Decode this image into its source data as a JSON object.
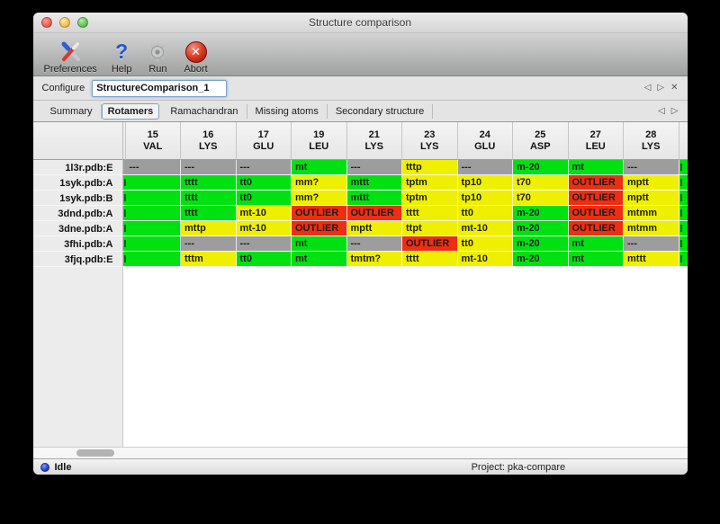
{
  "window": {
    "title": "Structure comparison"
  },
  "colors": {
    "green": "#00e112",
    "yellow": "#efef00",
    "red": "#ee2e12",
    "gray": "#9d9d9d"
  },
  "toolbar": {
    "buttons": [
      {
        "label": "Preferences",
        "icon": "tools-icon"
      },
      {
        "label": "Help",
        "icon": "help-icon"
      },
      {
        "label": "Run",
        "icon": "gear-icon"
      },
      {
        "label": "Abort",
        "icon": "abort-icon"
      }
    ]
  },
  "configure": {
    "label": "Configure",
    "value": "StructureComparison_1",
    "nav": {
      "prev": "◁",
      "next": "▷",
      "close": "✕"
    }
  },
  "tabs": {
    "items": [
      "Summary",
      "Rotamers",
      "Ramachandran",
      "Missing atoms",
      "Secondary structure"
    ],
    "active": "Rotamers",
    "nav": {
      "prev": "◁",
      "next": "▷"
    }
  },
  "table": {
    "columns": [
      {
        "num": "15",
        "res": "VAL"
      },
      {
        "num": "16",
        "res": "LYS"
      },
      {
        "num": "17",
        "res": "GLU"
      },
      {
        "num": "19",
        "res": "LEU"
      },
      {
        "num": "21",
        "res": "LYS"
      },
      {
        "num": "23",
        "res": "LYS"
      },
      {
        "num": "24",
        "res": "GLU"
      },
      {
        "num": "25",
        "res": "ASP"
      },
      {
        "num": "27",
        "res": "LEU"
      },
      {
        "num": "28",
        "res": "LYS"
      }
    ],
    "rows": [
      {
        "label": "1l3r.pdb:E",
        "edge_left": "gray",
        "edge_right": "green",
        "cells": [
          {
            "text": "---",
            "color": "gray"
          },
          {
            "text": "---",
            "color": "gray"
          },
          {
            "text": "---",
            "color": "gray"
          },
          {
            "text": "mt",
            "color": "green"
          },
          {
            "text": "---",
            "color": "gray"
          },
          {
            "text": "tttp",
            "color": "yellow"
          },
          {
            "text": "---",
            "color": "gray"
          },
          {
            "text": "m-20",
            "color": "green"
          },
          {
            "text": "mt",
            "color": "green"
          },
          {
            "text": "---",
            "color": "gray"
          }
        ]
      },
      {
        "label": "1syk.pdb:A",
        "edge_left": "green",
        "edge_right": "green",
        "cells": [
          {
            "text": "",
            "color": "green"
          },
          {
            "text": "tttt",
            "color": "green"
          },
          {
            "text": "tt0",
            "color": "green"
          },
          {
            "text": "mm?",
            "color": "yellow"
          },
          {
            "text": "mttt",
            "color": "green"
          },
          {
            "text": "tptm",
            "color": "yellow"
          },
          {
            "text": "tp10",
            "color": "yellow"
          },
          {
            "text": "t70",
            "color": "yellow"
          },
          {
            "text": "OUTLIER",
            "color": "red"
          },
          {
            "text": "mptt",
            "color": "yellow"
          }
        ]
      },
      {
        "label": "1syk.pdb:B",
        "edge_left": "green",
        "edge_right": "green",
        "cells": [
          {
            "text": "",
            "color": "green"
          },
          {
            "text": "tttt",
            "color": "green"
          },
          {
            "text": "tt0",
            "color": "green"
          },
          {
            "text": "mm?",
            "color": "yellow"
          },
          {
            "text": "mttt",
            "color": "green"
          },
          {
            "text": "tptm",
            "color": "yellow"
          },
          {
            "text": "tp10",
            "color": "yellow"
          },
          {
            "text": "t70",
            "color": "yellow"
          },
          {
            "text": "OUTLIER",
            "color": "red"
          },
          {
            "text": "mptt",
            "color": "yellow"
          }
        ]
      },
      {
        "label": "3dnd.pdb:A",
        "edge_left": "green",
        "edge_right": "green",
        "cells": [
          {
            "text": "",
            "color": "green"
          },
          {
            "text": "tttt",
            "color": "green"
          },
          {
            "text": "mt-10",
            "color": "yellow"
          },
          {
            "text": "OUTLIER",
            "color": "red"
          },
          {
            "text": "OUTLIER",
            "color": "red"
          },
          {
            "text": "tttt",
            "color": "yellow"
          },
          {
            "text": "tt0",
            "color": "yellow"
          },
          {
            "text": "m-20",
            "color": "green"
          },
          {
            "text": "OUTLIER",
            "color": "red"
          },
          {
            "text": "mtmm",
            "color": "yellow"
          }
        ]
      },
      {
        "label": "3dne.pdb:A",
        "edge_left": "green",
        "edge_right": "green",
        "cells": [
          {
            "text": "",
            "color": "green"
          },
          {
            "text": "mttp",
            "color": "yellow"
          },
          {
            "text": "mt-10",
            "color": "yellow"
          },
          {
            "text": "OUTLIER",
            "color": "red"
          },
          {
            "text": "mptt",
            "color": "yellow"
          },
          {
            "text": "ttpt",
            "color": "yellow"
          },
          {
            "text": "mt-10",
            "color": "yellow"
          },
          {
            "text": "m-20",
            "color": "green"
          },
          {
            "text": "OUTLIER",
            "color": "red"
          },
          {
            "text": "mtmm",
            "color": "yellow"
          }
        ]
      },
      {
        "label": "3fhi.pdb:A",
        "edge_left": "green",
        "edge_right": "green",
        "cells": [
          {
            "text": "",
            "color": "green"
          },
          {
            "text": "---",
            "color": "gray"
          },
          {
            "text": "---",
            "color": "gray"
          },
          {
            "text": "mt",
            "color": "green"
          },
          {
            "text": "---",
            "color": "gray"
          },
          {
            "text": "OUTLIER",
            "color": "red"
          },
          {
            "text": "tt0",
            "color": "yellow"
          },
          {
            "text": "m-20",
            "color": "green"
          },
          {
            "text": "mt",
            "color": "green"
          },
          {
            "text": "---",
            "color": "gray"
          }
        ]
      },
      {
        "label": "3fjq.pdb:E",
        "edge_left": "green",
        "edge_right": "green",
        "cells": [
          {
            "text": "",
            "color": "green"
          },
          {
            "text": "tttm",
            "color": "yellow"
          },
          {
            "text": "tt0",
            "color": "green"
          },
          {
            "text": "mt",
            "color": "green"
          },
          {
            "text": "tmtm?",
            "color": "yellow"
          },
          {
            "text": "tttt",
            "color": "yellow"
          },
          {
            "text": "mt-10",
            "color": "yellow"
          },
          {
            "text": "m-20",
            "color": "green"
          },
          {
            "text": "mt",
            "color": "green"
          },
          {
            "text": "mttt",
            "color": "yellow"
          }
        ]
      }
    ]
  },
  "status": {
    "state": "Idle",
    "project": "Project: pka-compare"
  }
}
